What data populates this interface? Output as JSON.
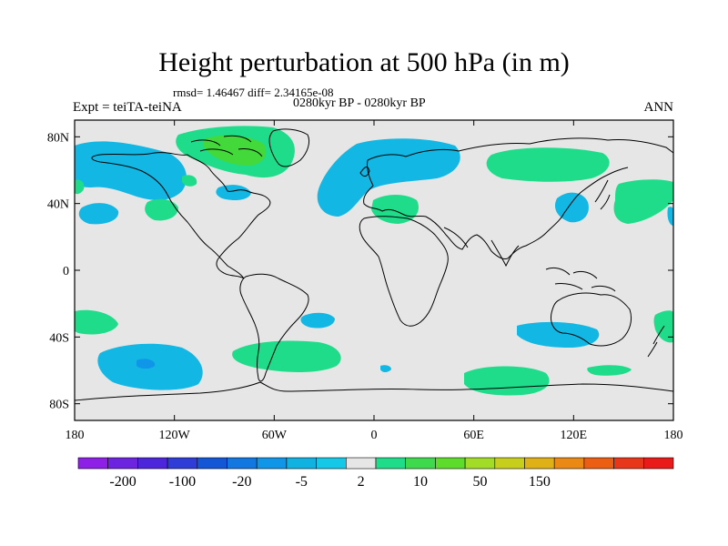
{
  "title": "Height perturbation at 500 hPa (in m)",
  "stats_line": "rmsd= 1.46467 diff= 2.34165e-08",
  "subtitle": "0280kyr BP - 0280kyr BP",
  "left_label": "Expt = teiTA-teiNA",
  "right_label": "ANN",
  "colors": {
    "ocean_bg": "#e6e6e6",
    "coast": "#000000",
    "neg_small": "#12b7e3",
    "pos_small": "#1fdc8a",
    "pos_medium": "#44d93a"
  },
  "map": {
    "lon_range": [
      -180,
      180
    ],
    "lat_range": [
      -90,
      90
    ],
    "lat_ticks": [
      "80N",
      "40N",
      "0",
      "40S",
      "80S"
    ],
    "lon_ticks": [
      "180",
      "120W",
      "60W",
      "0",
      "60E",
      "120E",
      "180"
    ]
  },
  "colorbar": {
    "colors": [
      "#8d1fe6",
      "#6d24e0",
      "#4d26dc",
      "#2f3cd8",
      "#1357d6",
      "#1277e1",
      "#0f96e8",
      "#10b2e2",
      "#15c8e8",
      "#e6e6e6",
      "#1fdc8a",
      "#3fd94d",
      "#5edc2c",
      "#a3dc26",
      "#c7cf1c",
      "#e0b017",
      "#ea8a14",
      "#ec5f13",
      "#e8361a",
      "#ea1a1a"
    ],
    "labels": [
      "-200",
      "-100",
      "-20",
      "-5",
      "2",
      "10",
      "50",
      "150"
    ]
  }
}
